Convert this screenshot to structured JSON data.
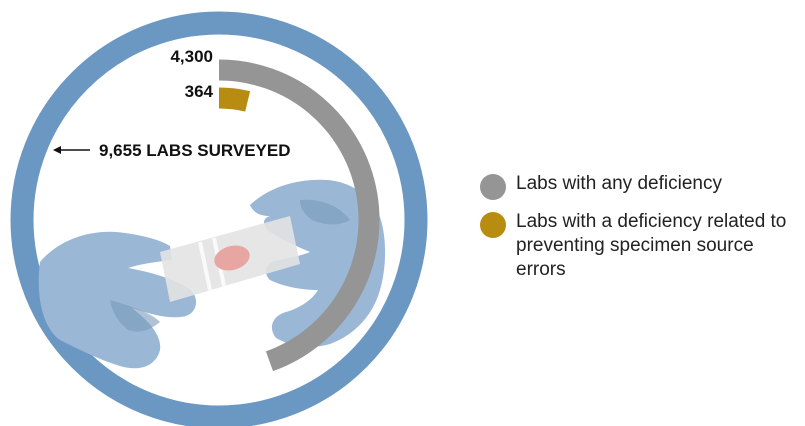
{
  "chart_data": {
    "type": "radial-bar",
    "total": {
      "label": "9,655 LABS SURVEYED",
      "value": 9655
    },
    "series": [
      {
        "key": "any",
        "label": "4,300",
        "value": 4300,
        "color": "#959595"
      },
      {
        "key": "specimen",
        "label": "364",
        "value": 364,
        "color": "#b88c10"
      }
    ],
    "legend": [
      {
        "text": "Labs with any deficiency",
        "color": "#959595"
      },
      {
        "text": "Labs with a deficiency related to preventing specimen source errors",
        "color": "#b88c10"
      }
    ],
    "legend_position": "right"
  },
  "colors": {
    "ring": "#6b98c2",
    "glove": "#9ab8d6",
    "glove_shadow": "#7a9abb",
    "slide": "#e3e3e3",
    "sample": "#e8a6a2"
  }
}
